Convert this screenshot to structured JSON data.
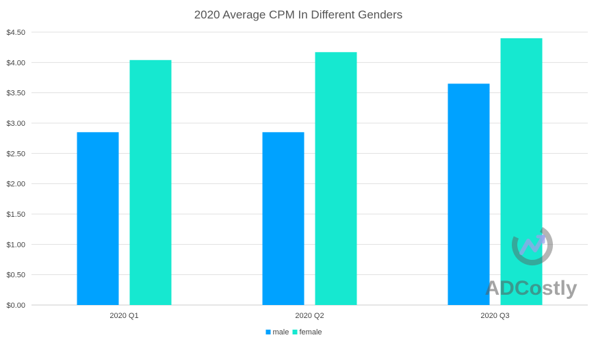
{
  "chart_data": {
    "type": "bar",
    "title": "2020 Average CPM In Different Genders",
    "xlabel": "",
    "ylabel": "",
    "categories": [
      "2020 Q1",
      "2020 Q2",
      "2020 Q3"
    ],
    "series": [
      {
        "name": "male",
        "color": "#00a2ff",
        "values": [
          2.85,
          2.85,
          3.65
        ]
      },
      {
        "name": "female",
        "color": "#16e8d0",
        "values": [
          4.04,
          4.17,
          4.4
        ]
      }
    ],
    "ylim": [
      0,
      4.5
    ],
    "yticks": [
      0,
      0.5,
      1,
      1.5,
      2,
      2.5,
      3,
      3.5,
      4,
      4.5
    ],
    "ytick_labels": [
      "$0.00",
      "$0.50",
      "$1.00",
      "$1.50",
      "$2.00",
      "$2.50",
      "$3.00",
      "$3.50",
      "$4.00",
      "$4.50"
    ],
    "grid": true,
    "legend_position": "bottom-center"
  },
  "watermark": {
    "text": "ADCostly"
  },
  "colors": {
    "grid": "#e0e0e0",
    "axis": "#cccccc"
  }
}
